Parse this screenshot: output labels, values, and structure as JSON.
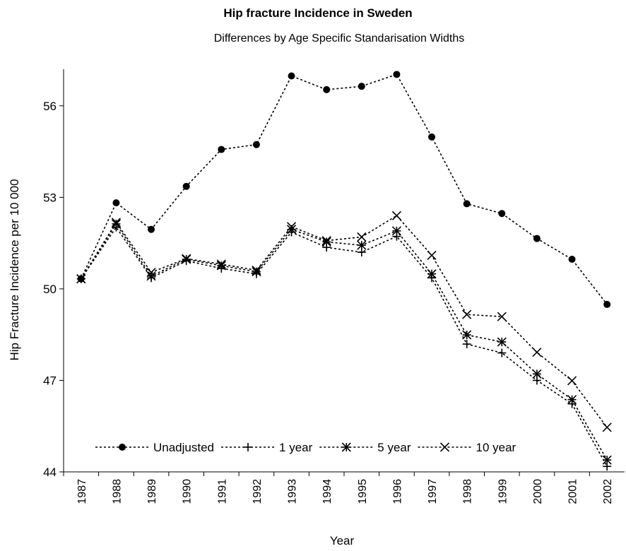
{
  "chart_data": {
    "type": "line",
    "title": "Hip fracture Incidence in Sweden",
    "subtitle": "Differences by Age Specific Standarisation Widths",
    "x_label": "Year",
    "y_label": "Hip Fracture Incidence per 10 000",
    "categories": [
      "1987",
      "1988",
      "1989",
      "1990",
      "1991",
      "1992",
      "1993",
      "1994",
      "1995",
      "1996",
      "1997",
      "1998",
      "1999",
      "2000",
      "2001",
      "2002"
    ],
    "ylim": [
      44,
      57.2
    ],
    "yticks": [
      44,
      47,
      50,
      53,
      56
    ],
    "grid": false,
    "legend": "bottom",
    "series": [
      {
        "name": "Unadjusted",
        "color": "#000000",
        "marker": "circle",
        "values": [
          50.33,
          52.82,
          51.95,
          53.36,
          54.57,
          54.73,
          56.98,
          56.53,
          56.64,
          57.03,
          54.98,
          52.79,
          52.47,
          51.65,
          50.97,
          49.49
        ]
      },
      {
        "name": "1 year",
        "color": "#000000",
        "marker": "plus",
        "values": [
          50.33,
          52.02,
          50.36,
          50.92,
          50.67,
          50.49,
          51.86,
          51.36,
          51.2,
          51.72,
          50.36,
          48.19,
          47.9,
          47.0,
          46.23,
          44.18
        ]
      },
      {
        "name": "5 year",
        "color": "#000000",
        "marker": "asterisk",
        "values": [
          50.33,
          52.13,
          50.42,
          50.97,
          50.76,
          50.56,
          51.95,
          51.54,
          51.43,
          51.9,
          50.49,
          48.49,
          48.26,
          47.21,
          46.37,
          44.39
        ]
      },
      {
        "name": "10 year",
        "color": "#000000",
        "marker": "cross",
        "values": [
          50.33,
          52.18,
          50.54,
          50.99,
          50.81,
          50.61,
          52.04,
          51.58,
          51.7,
          52.4,
          51.1,
          49.16,
          49.09,
          47.92,
          46.99,
          45.46
        ]
      }
    ]
  }
}
